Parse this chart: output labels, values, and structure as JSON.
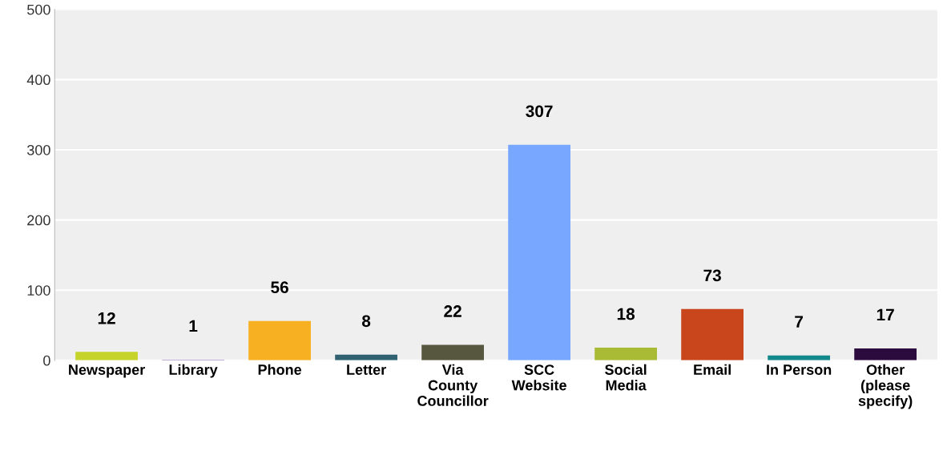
{
  "chart_data": {
    "type": "bar",
    "categories": [
      "Newspaper",
      "Library",
      "Phone",
      "Letter",
      "Via County Councillor",
      "SCC Website",
      "Social Media",
      "Email",
      "In Person",
      "Other (please specify)"
    ],
    "values": [
      12,
      1,
      56,
      8,
      22,
      307,
      18,
      73,
      7,
      17
    ],
    "colors": [
      "#c5d32b",
      "#8b6fb0",
      "#f6b021",
      "#2f6170",
      "#57563f",
      "#78a7ff",
      "#a9ba35",
      "#c9451b",
      "#14898b",
      "#2b0b3e"
    ],
    "ylim": [
      0,
      500
    ],
    "yticks": [
      0,
      100,
      200,
      300,
      400,
      500
    ],
    "grid": "y",
    "data_labels": true
  }
}
